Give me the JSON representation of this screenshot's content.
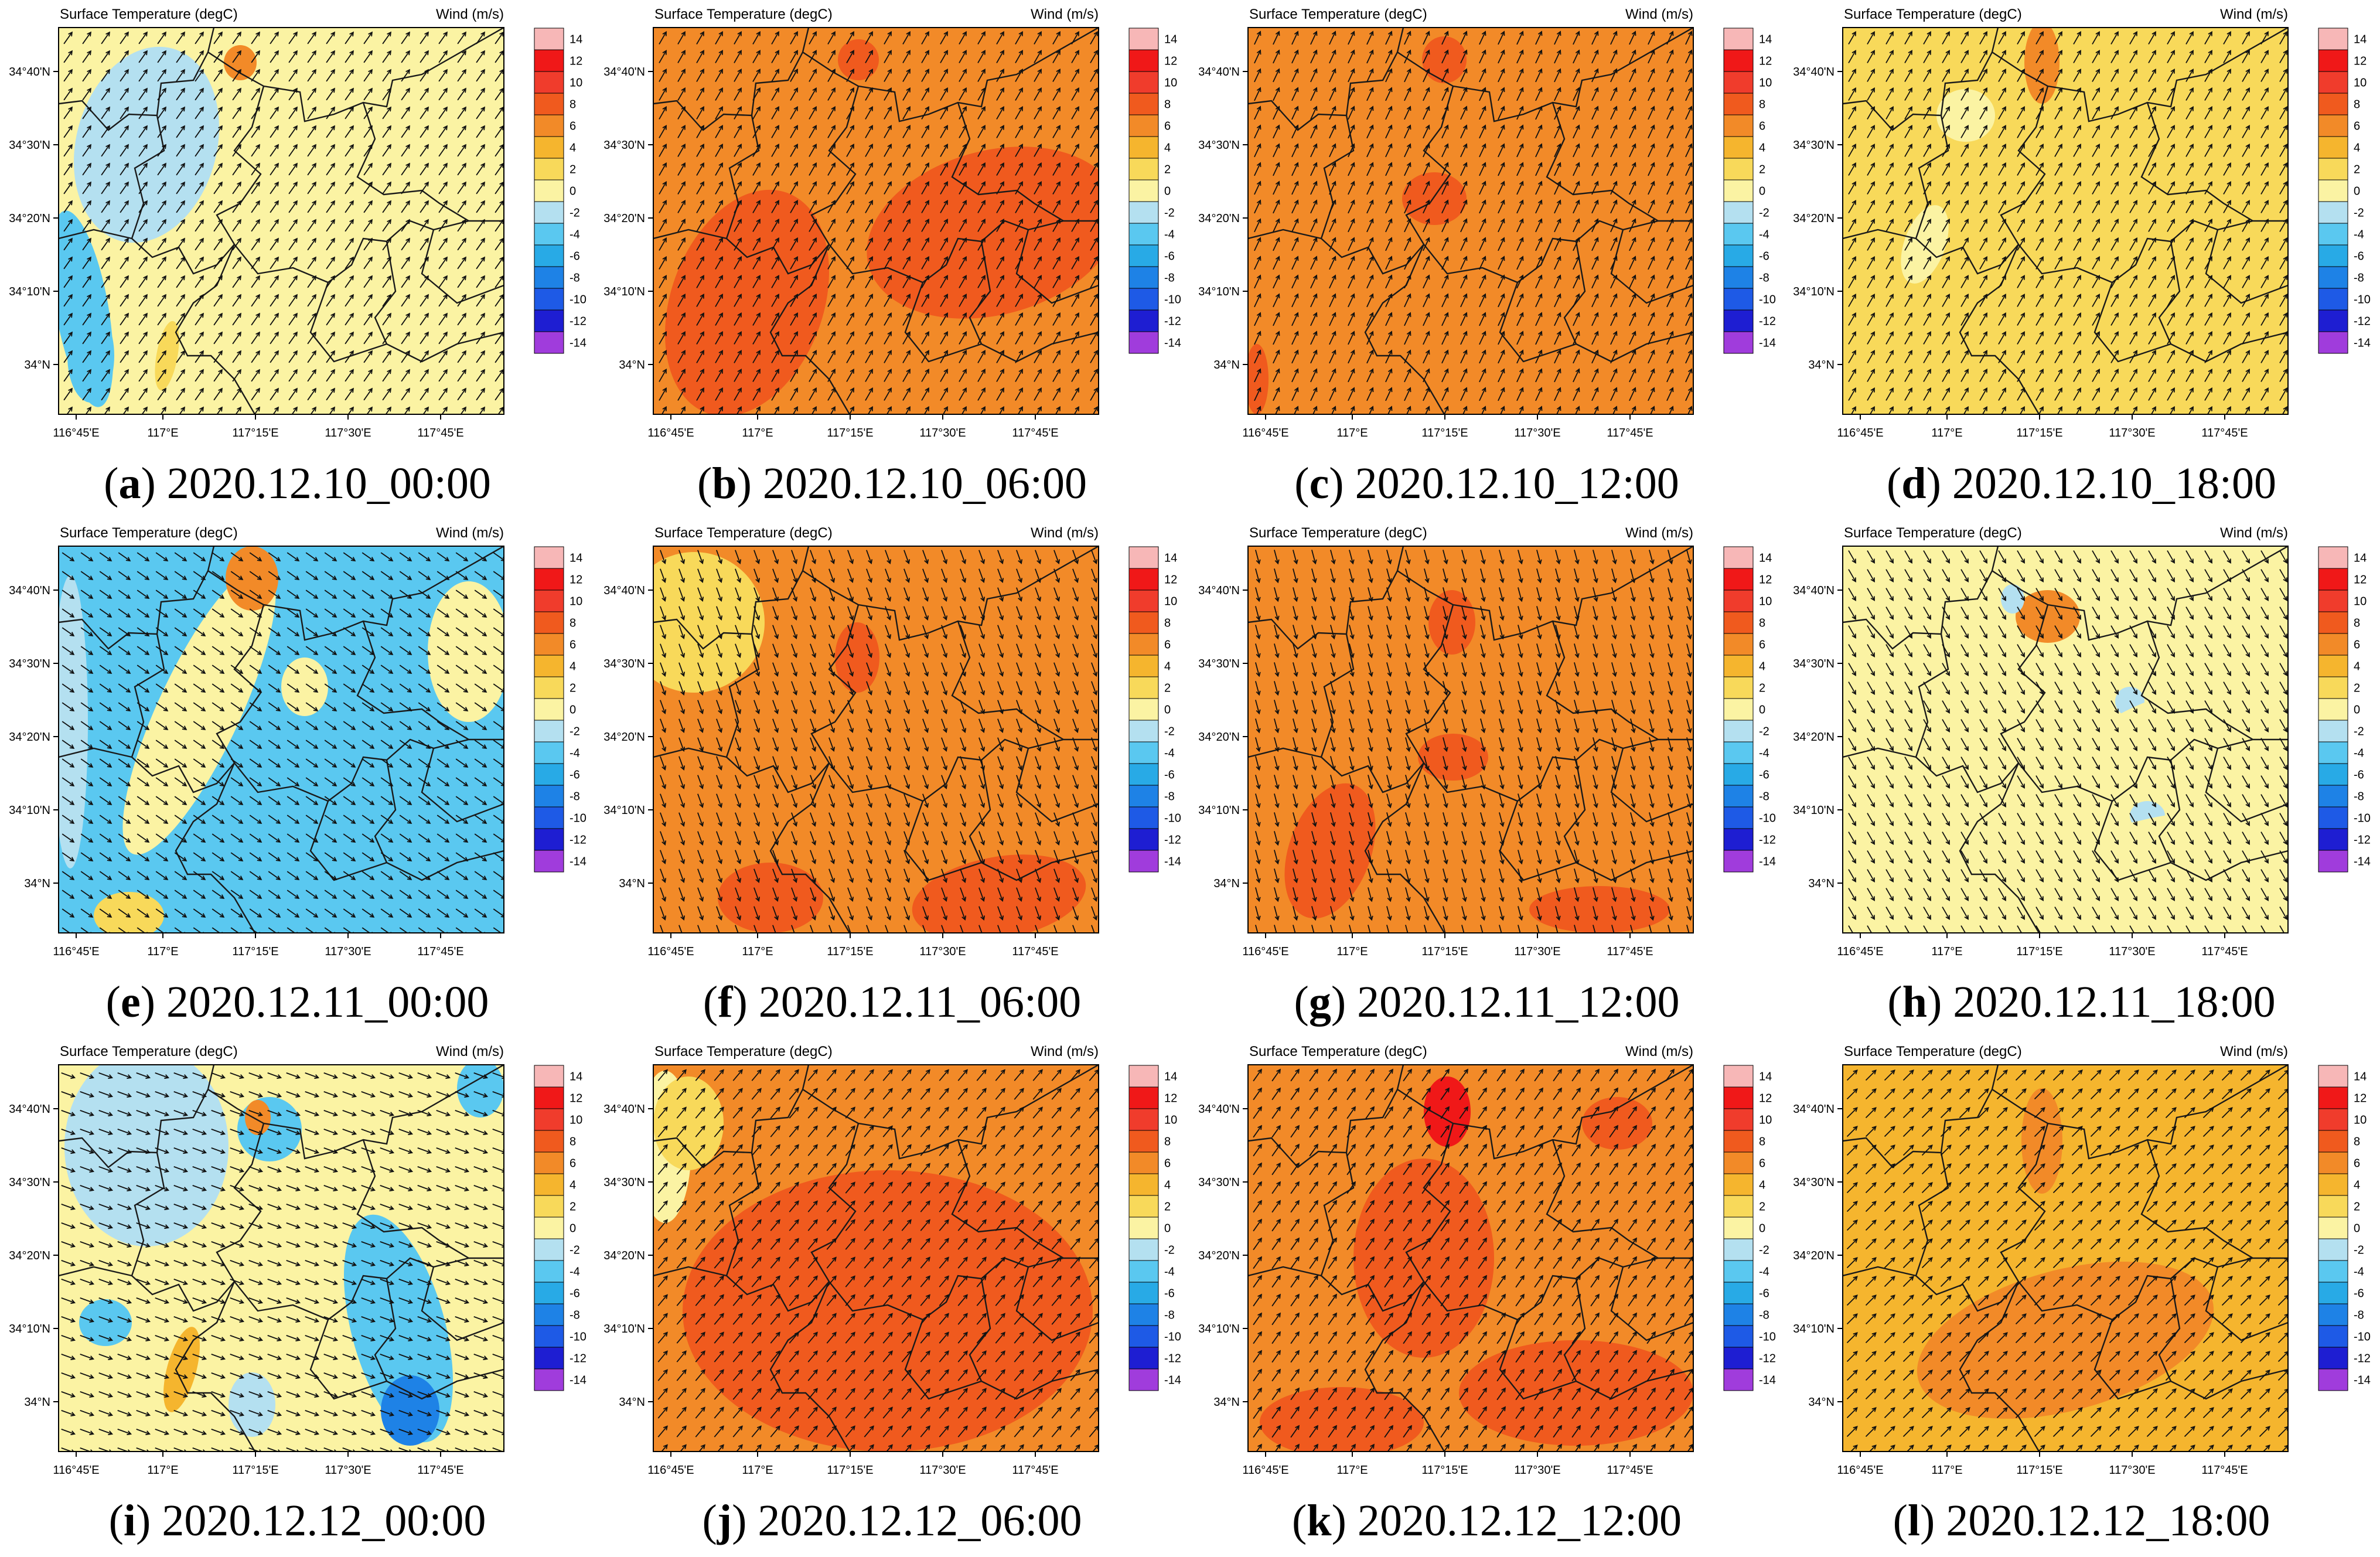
{
  "figure": {
    "header_left": "Surface Temperature (degC)",
    "header_right": "Wind (m/s)",
    "x_ticks": [
      "116°45'E",
      "117°E",
      "117°15'E",
      "117°30'E",
      "117°45'E"
    ],
    "y_ticks": [
      "34°40'N",
      "34°30'N",
      "34°20'N",
      "34°10'N",
      "34°N"
    ],
    "colorbar": {
      "labels": [
        "14",
        "12",
        "10",
        "8",
        "6",
        "4",
        "2",
        "0",
        "-2",
        "-4",
        "-6",
        "-8",
        "-10",
        "-12",
        "-14"
      ],
      "colors": [
        "#f7b7b7",
        "#f01818",
        "#f03c2c",
        "#f05a1e",
        "#f28a28",
        "#f5b52e",
        "#f8d95a",
        "#fbf3a3",
        "#b4e0f0",
        "#5ac8f0",
        "#28aae6",
        "#1e82e6",
        "#1e5ae6",
        "#1e1ed2",
        "#a03cdc"
      ]
    },
    "palette": {
      "pale_yellow": "#fbf3a3",
      "yellow": "#f8d95a",
      "orange_light": "#f5b52e",
      "orange": "#f28a28",
      "orange_red": "#f05a1e",
      "red": "#f01818",
      "light_blue": "#b4e0f0",
      "blue": "#5ac8f0",
      "deep_blue": "#1e82e6"
    }
  },
  "panels": [
    {
      "letter": "a",
      "date": "2020.12.10_00:00",
      "base": "pale_yellow",
      "wind_deg": -55
    },
    {
      "letter": "b",
      "date": "2020.12.10_06:00",
      "base": "orange",
      "wind_deg": -60
    },
    {
      "letter": "c",
      "date": "2020.12.10_12:00",
      "base": "orange",
      "wind_deg": -65
    },
    {
      "letter": "d",
      "date": "2020.12.10_18:00",
      "base": "yellow",
      "wind_deg": -60
    },
    {
      "letter": "e",
      "date": "2020.12.11_00:00",
      "base": "blue",
      "wind_deg": 35
    },
    {
      "letter": "f",
      "date": "2020.12.11_06:00",
      "base": "orange",
      "wind_deg": 70
    },
    {
      "letter": "g",
      "date": "2020.12.11_12:00",
      "base": "orange",
      "wind_deg": 75
    },
    {
      "letter": "h",
      "date": "2020.12.11_18:00",
      "base": "pale_yellow",
      "wind_deg": 60
    },
    {
      "letter": "i",
      "date": "2020.12.12_00:00",
      "base": "pale_yellow",
      "wind_deg": 20
    },
    {
      "letter": "j",
      "date": "2020.12.12_06:00",
      "base": "orange",
      "wind_deg": -50
    },
    {
      "letter": "k",
      "date": "2020.12.12_12:00",
      "base": "orange",
      "wind_deg": -55
    },
    {
      "letter": "l",
      "date": "2020.12.12_18:00",
      "base": "orange_light",
      "wind_deg": -45
    }
  ]
}
